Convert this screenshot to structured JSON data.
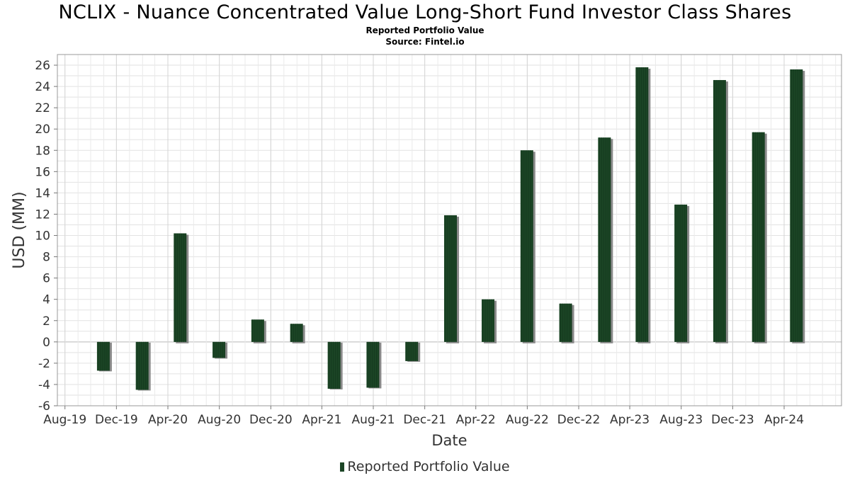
{
  "chart_data": {
    "type": "bar",
    "title": "NCLIX - Nuance Concentrated Value Long-Short Fund Investor Class Shares",
    "subtitle": "Reported Portfolio Value",
    "source": "Source: Fintel.io",
    "xlabel": "Date",
    "ylabel": "USD (MM)",
    "ylim": [
      -6,
      27
    ],
    "yticks": [
      -6,
      -4,
      -2,
      0,
      2,
      4,
      6,
      8,
      10,
      12,
      14,
      16,
      18,
      20,
      22,
      24,
      26
    ],
    "xlim": [
      "2019-07-14",
      "2024-08-15"
    ],
    "xticks": [
      {
        "date": "2019-08-01",
        "label": "Aug-19"
      },
      {
        "date": "2019-12-01",
        "label": "Dec-19"
      },
      {
        "date": "2020-04-01",
        "label": "Apr-20"
      },
      {
        "date": "2020-08-01",
        "label": "Aug-20"
      },
      {
        "date": "2020-12-01",
        "label": "Dec-20"
      },
      {
        "date": "2021-04-01",
        "label": "Apr-21"
      },
      {
        "date": "2021-08-01",
        "label": "Aug-21"
      },
      {
        "date": "2021-12-01",
        "label": "Dec-21"
      },
      {
        "date": "2022-04-01",
        "label": "Apr-22"
      },
      {
        "date": "2022-08-01",
        "label": "Aug-22"
      },
      {
        "date": "2022-12-01",
        "label": "Dec-22"
      },
      {
        "date": "2023-04-01",
        "label": "Apr-23"
      },
      {
        "date": "2023-08-01",
        "label": "Aug-23"
      },
      {
        "date": "2023-12-01",
        "label": "Dec-23"
      },
      {
        "date": "2024-04-01",
        "label": "Apr-24"
      }
    ],
    "grid": true,
    "legend_position": "bottom",
    "series": [
      {
        "name": "Reported Portfolio Value",
        "color": "#1b4525",
        "points": [
          {
            "date": "2019-10-31",
            "value": -2.7
          },
          {
            "date": "2020-01-31",
            "value": -4.5
          },
          {
            "date": "2020-04-30",
            "value": 10.2
          },
          {
            "date": "2020-07-31",
            "value": -1.5
          },
          {
            "date": "2020-10-31",
            "value": 2.1
          },
          {
            "date": "2021-01-31",
            "value": 1.7
          },
          {
            "date": "2021-04-30",
            "value": -4.4
          },
          {
            "date": "2021-07-31",
            "value": -4.3
          },
          {
            "date": "2021-10-31",
            "value": -1.8
          },
          {
            "date": "2022-01-31",
            "value": 11.9
          },
          {
            "date": "2022-04-30",
            "value": 4.0
          },
          {
            "date": "2022-07-31",
            "value": 18.0
          },
          {
            "date": "2022-10-31",
            "value": 3.6
          },
          {
            "date": "2023-01-31",
            "value": 19.2
          },
          {
            "date": "2023-04-30",
            "value": 25.8
          },
          {
            "date": "2023-07-31",
            "value": 12.9
          },
          {
            "date": "2023-10-31",
            "value": 24.6
          },
          {
            "date": "2024-01-31",
            "value": 19.7
          },
          {
            "date": "2024-04-30",
            "value": 25.6
          }
        ]
      }
    ]
  }
}
